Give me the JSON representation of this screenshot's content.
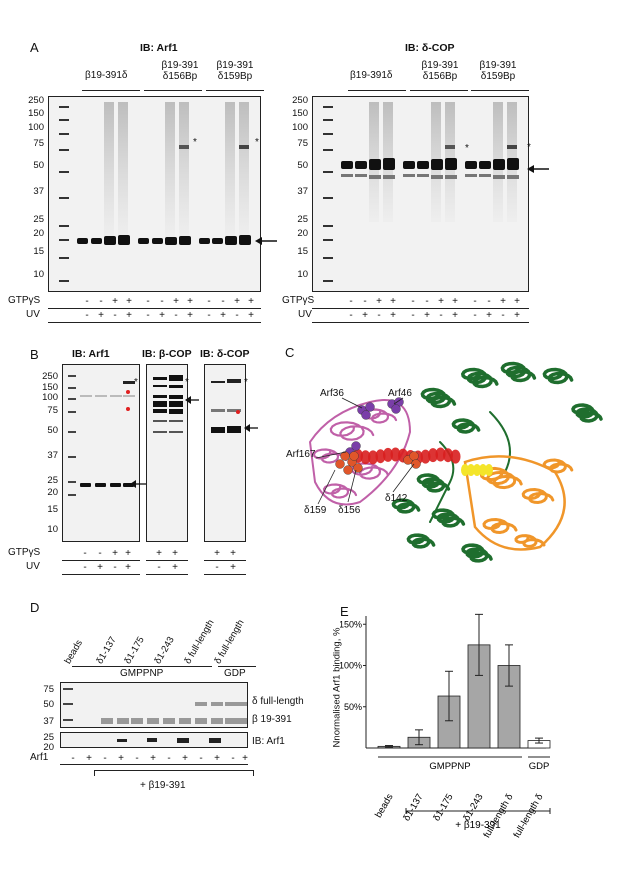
{
  "panels": {
    "A": "A",
    "B": "B",
    "C": "C",
    "D": "D",
    "E": "E"
  },
  "panelA": {
    "left_title": "IB: Arf1",
    "right_title": "IB: δ-COP",
    "groups": [
      "β19-391δ",
      "β19-391\nδ156Bp",
      "β19-391\nδ159Bp"
    ],
    "group1": "β19-391δ",
    "group2a": "β19-391",
    "group2b": "δ156Bp",
    "group3a": "β19-391",
    "group3b": "δ159Bp",
    "mw_markers": [
      "250",
      "150",
      "100",
      "75",
      "50",
      "37",
      "25",
      "20",
      "15",
      "10"
    ],
    "gtp_label": "GTPγS",
    "uv_label": "UV",
    "gtp_signs": [
      "-",
      "-",
      "+",
      "+",
      "-",
      "-",
      "+",
      "+",
      "-",
      "-",
      "+",
      "+"
    ],
    "uv_signs": [
      "-",
      "+",
      "-",
      "+",
      "-",
      "+",
      "-",
      "+",
      "-",
      "+",
      "-",
      "+"
    ],
    "star": "*"
  },
  "panelB": {
    "titles": [
      "IB: Arf1",
      "IB: β-COP",
      "IB: δ-COP"
    ],
    "mw_markers": [
      "250",
      "150",
      "100",
      "75",
      "50",
      "37",
      "25",
      "20",
      "15",
      "10"
    ],
    "gtp_label": "GTPγS",
    "uv_label": "UV",
    "gtp1": [
      "-",
      "-",
      "+",
      "+"
    ],
    "uv1": [
      "-",
      "+",
      "-",
      "+"
    ],
    "gtp2": [
      "+",
      "+"
    ],
    "uv2": [
      "-",
      "+"
    ],
    "gtp3": [
      "+",
      "+"
    ],
    "uv3": [
      "-",
      "+"
    ],
    "star": "*"
  },
  "panelC": {
    "labels": {
      "arf36": "Arf36",
      "arf46": "Arf46",
      "arf167": "Arf167",
      "d142": "δ142",
      "d159": "δ159",
      "d156": "δ156"
    },
    "colors": {
      "arf": "#c060a8",
      "beta": "#1f6e2e",
      "delta": "#f0962a",
      "helix": "#d81e1e",
      "yellow": "#f4e52a",
      "sphere_purple": "#7a3ea8",
      "sphere_orange": "#e0562a"
    }
  },
  "panelD": {
    "lanes": [
      "beads",
      "δ1-137",
      "δ1-175",
      "δ1-243",
      "δ full-length",
      "δ full-length"
    ],
    "gmppnp": "GMPPNP",
    "gdp": "GDP",
    "mw_top": [
      "75",
      "50",
      "37"
    ],
    "mw_bottom": [
      "25",
      "20"
    ],
    "band_labels": [
      "δ full-length",
      "β 19-391",
      "IB: Arf1"
    ],
    "arf_label": "Arf1",
    "arf_signs": [
      "-",
      "+",
      "-",
      "+",
      "-",
      "+",
      "-",
      "+",
      "-",
      "+",
      "-",
      "+"
    ],
    "bracket_label": "+ β19-391"
  },
  "chart_data": {
    "type": "bar",
    "categories": [
      "beads",
      "δ1-137",
      "δ1-175",
      "δ1-243",
      "full-length δ",
      "full-length δ"
    ],
    "values": [
      2,
      13,
      63,
      125,
      100,
      9
    ],
    "errors": [
      1,
      9,
      30,
      37,
      25,
      3
    ],
    "ylabel": "Nnormalised Arf1 binding, %",
    "yticks": [
      "50%",
      "100%",
      "150%"
    ],
    "ylim": [
      0,
      160
    ],
    "group_labels": [
      "GMPPNP",
      "GDP"
    ],
    "bracket_label": "+ β19-391",
    "colors": {
      "gmppnp": "#a6a6a6",
      "gdp": "#ffffff"
    }
  }
}
